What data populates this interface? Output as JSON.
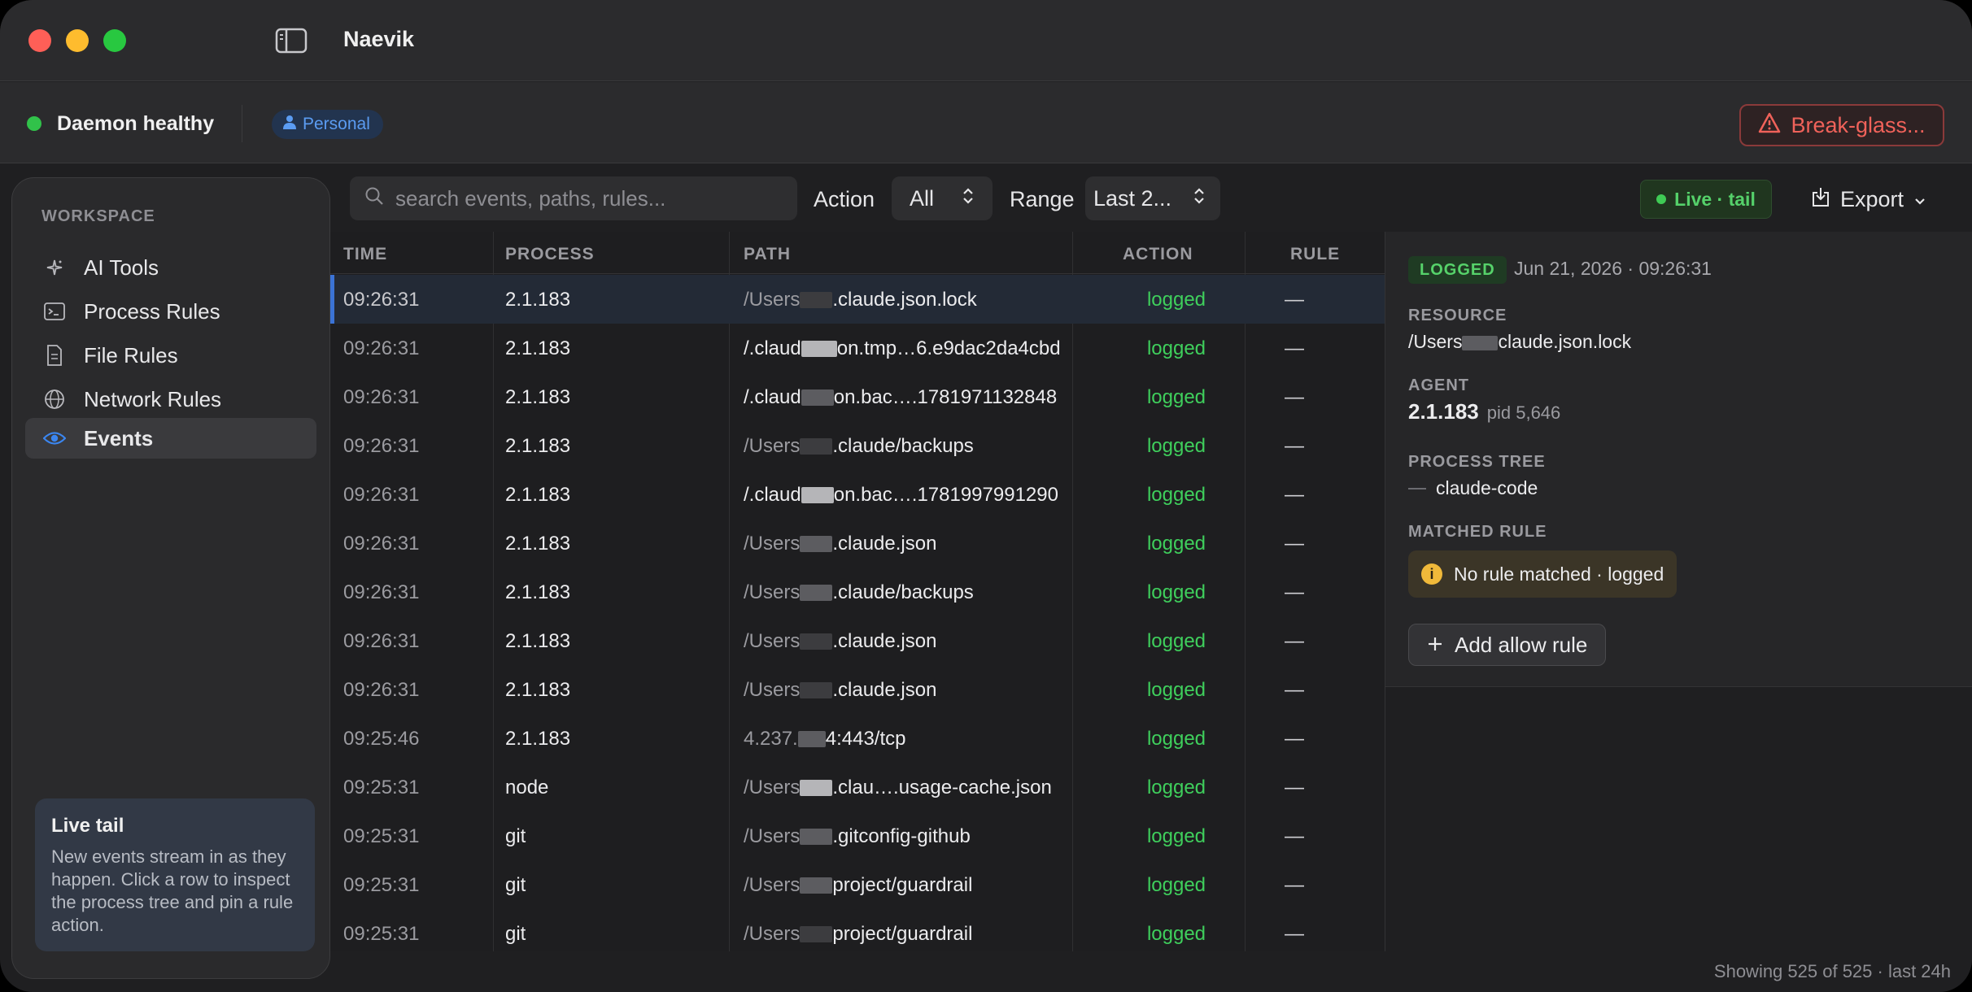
{
  "app": {
    "title": "Naevik"
  },
  "status": {
    "daemon_label": "Daemon healthy",
    "profile_label": "Personal",
    "break_glass_label": "Break-glass..."
  },
  "sidebar": {
    "section_label": "WORKSPACE",
    "items": [
      {
        "label": "AI Tools",
        "icon": "sparkle-icon",
        "active": false
      },
      {
        "label": "Process Rules",
        "icon": "terminal-icon",
        "active": false
      },
      {
        "label": "File Rules",
        "icon": "document-icon",
        "active": false
      },
      {
        "label": "Network Rules",
        "icon": "globe-icon",
        "active": false
      },
      {
        "label": "Events",
        "icon": "eye-icon",
        "active": true
      }
    ],
    "tip": {
      "title": "Live tail",
      "body": "New events stream in as they happen. Click a row to inspect the process tree and pin a rule action."
    }
  },
  "toolbar": {
    "search_placeholder": "search events, paths, rules...",
    "action_label": "Action",
    "action_value": "All",
    "range_label": "Range",
    "range_value": "Last 2...",
    "live_tail_label": "Live · tail",
    "export_label": "Export"
  },
  "table": {
    "columns": [
      "TIME",
      "PROCESS",
      "PATH",
      "ACTION",
      "RULE"
    ],
    "rows": [
      {
        "time": "09:26:31",
        "process": "2.1.183",
        "path_pre": "/Users",
        "path_post": ".claude.json.lock",
        "action": "logged",
        "rule": "—",
        "selected": true
      },
      {
        "time": "09:26:31",
        "process": "2.1.183",
        "path_pre": "/.claud",
        "path_post": "on.tmp…6.e9dac2da4cbd",
        "action": "logged",
        "rule": "—"
      },
      {
        "time": "09:26:31",
        "process": "2.1.183",
        "path_pre": "/.claud",
        "path_post": "on.bac….1781971132848",
        "action": "logged",
        "rule": "—"
      },
      {
        "time": "09:26:31",
        "process": "2.1.183",
        "path_pre": "/Users",
        "path_post": ".claude/backups",
        "action": "logged",
        "rule": "—"
      },
      {
        "time": "09:26:31",
        "process": "2.1.183",
        "path_pre": "/.claud",
        "path_post": "on.bac….1781997991290",
        "action": "logged",
        "rule": "—"
      },
      {
        "time": "09:26:31",
        "process": "2.1.183",
        "path_pre": "/Users",
        "path_post": ".claude.json",
        "action": "logged",
        "rule": "—"
      },
      {
        "time": "09:26:31",
        "process": "2.1.183",
        "path_pre": "/Users",
        "path_post": ".claude/backups",
        "action": "logged",
        "rule": "—"
      },
      {
        "time": "09:26:31",
        "process": "2.1.183",
        "path_pre": "/Users",
        "path_post": ".claude.json",
        "action": "logged",
        "rule": "—"
      },
      {
        "time": "09:26:31",
        "process": "2.1.183",
        "path_pre": "/Users",
        "path_post": ".claude.json",
        "action": "logged",
        "rule": "—"
      },
      {
        "time": "09:25:46",
        "process": "2.1.183",
        "path_pre": "4.237.",
        "path_post": "4:443/tcp",
        "action": "logged",
        "rule": "—"
      },
      {
        "time": "09:25:31",
        "process": "node",
        "path_pre": "/Users",
        "path_post": ".clau….usage-cache.json",
        "action": "logged",
        "rule": "—"
      },
      {
        "time": "09:25:31",
        "process": "git",
        "path_pre": "/Users",
        "path_post": ".gitconfig-github",
        "action": "logged",
        "rule": "—"
      },
      {
        "time": "09:25:31",
        "process": "git",
        "path_pre": "/Users",
        "path_post": "project/guardrail",
        "action": "logged",
        "rule": "—"
      },
      {
        "time": "09:25:31",
        "process": "git",
        "path_pre": "/Users",
        "path_post": "project/guardrail",
        "action": "logged",
        "rule": "—"
      }
    ],
    "footer": "Showing 525 of 525 · last 24h"
  },
  "detail": {
    "status_badge": "LOGGED",
    "timestamp": "Jun 21, 2026 · 09:26:31",
    "resource_label": "RESOURCE",
    "resource_pre": "/Users",
    "resource_post": "claude.json.lock",
    "agent_label": "AGENT",
    "agent_name": "2.1.183",
    "agent_pid": "pid 5,646",
    "tree_label": "PROCESS TREE",
    "tree_root": "claude-code",
    "matched_label": "MATCHED RULE",
    "matched_value": "No rule matched · logged",
    "add_rule_label": "Add allow rule"
  },
  "colors": {
    "accent_blue": "#3b73d6",
    "logged_green": "#3fcf5c",
    "danger_red": "#f0625a",
    "warning_amber": "#f0b93a"
  }
}
